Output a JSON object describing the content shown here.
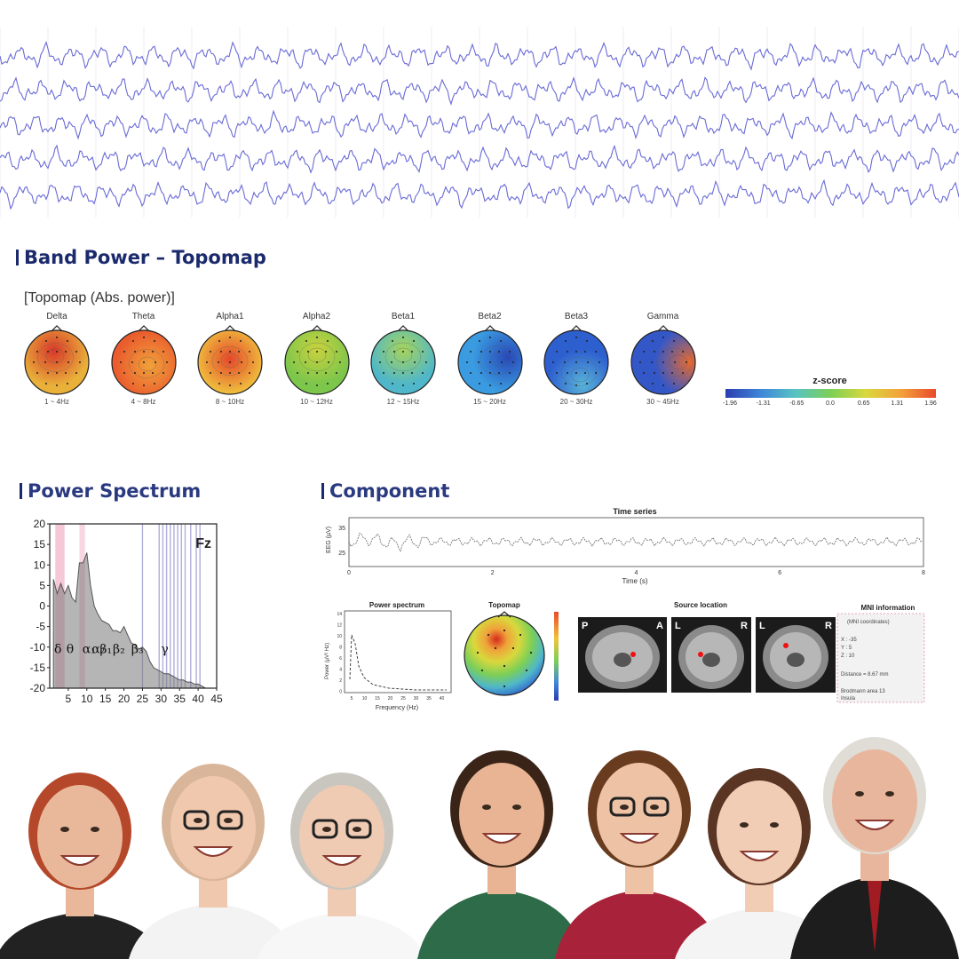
{
  "eeg": {
    "channel_count": 5,
    "trace_color": "#6a6bd6"
  },
  "band_power": {
    "heading": "Band Power – Topomap",
    "subtitle": "[Topomap (Abs. power)]",
    "bands": [
      {
        "name": "Delta",
        "range": "1 ~ 4Hz",
        "base": "#e9b03a",
        "hot": "#d8382a",
        "hot_pos": [
          0.45,
          0.32
        ]
      },
      {
        "name": "Theta",
        "range": "4 ~ 8Hz",
        "base": "#ea5b2e",
        "hot": "#f0a23a",
        "hot_pos": [
          0.6,
          0.55
        ]
      },
      {
        "name": "Alpha1",
        "range": "8 ~ 10Hz",
        "base": "#f0c23e",
        "hot": "#e4472b",
        "hot_pos": [
          0.5,
          0.45
        ]
      },
      {
        "name": "Alpha2",
        "range": "10 ~ 12Hz",
        "base": "#7cc64c",
        "hot": "#c9d23d",
        "hot_pos": [
          0.5,
          0.3
        ]
      },
      {
        "name": "Beta1",
        "range": "12 ~ 15Hz",
        "base": "#4fb7c9",
        "hot": "#a6d45a",
        "hot_pos": [
          0.5,
          0.3
        ]
      },
      {
        "name": "Beta2",
        "range": "15 ~ 20Hz",
        "base": "#3a9be0",
        "hot": "#2848b8",
        "hot_pos": [
          0.78,
          0.42
        ]
      },
      {
        "name": "Beta3",
        "range": "20 ~ 30Hz",
        "base": "#2e5fcf",
        "hot": "#58b3d8",
        "hot_pos": [
          0.6,
          0.85
        ]
      },
      {
        "name": "Gamma",
        "range": "30 ~ 45Hz",
        "base": "#3457c8",
        "hot": "#e86a2e",
        "hot_pos": [
          0.92,
          0.5
        ]
      }
    ],
    "colorbar": {
      "label": "z-score",
      "ticks": [
        "-1.96",
        "-1.31",
        "-0.65",
        "0.0",
        "0.65",
        "1.31",
        "1.96"
      ]
    }
  },
  "power_spectrum": {
    "heading": "Power Spectrum"
  },
  "component": {
    "heading": "Component",
    "time_series": {
      "title": "Time series",
      "ylabel": "EEG (µV)",
      "xlabel": "Time (s)",
      "x_ticks": [
        "0",
        "2",
        "4",
        "6",
        "8"
      ],
      "y_ticks": [
        "35",
        "25"
      ]
    },
    "power_spectrum": {
      "title": "Power spectrum",
      "ylabel": "Power (µV² Hz)",
      "xlabel": "Frequency (Hz)"
    },
    "topomap": {
      "title": "Topomap"
    },
    "source": {
      "title": "Source location",
      "panel1": [
        "P",
        "A"
      ],
      "panel2": [
        "L",
        "R"
      ],
      "panel3": [
        "L",
        "R"
      ]
    },
    "mni": {
      "title": "MNI information",
      "sub": "(MNI coordinates)",
      "x": "X : -35",
      "y": "Y : 5",
      "z": "Z : 10",
      "distance": "Distance = 8.67 mm",
      "brodmann": "Brodmann area 13",
      "region": "Insula"
    }
  },
  "chart_data": [
    {
      "type": "area",
      "title": "Fz",
      "xlabel": "",
      "ylabel": "",
      "xlim": [
        0,
        45
      ],
      "ylim": [
        -20,
        20
      ],
      "x_ticks": [
        "5",
        "10",
        "15",
        "20",
        "25",
        "30",
        "35",
        "40",
        "45"
      ],
      "y_ticks": [
        "20",
        "15",
        "10",
        "5",
        "0",
        "-5",
        "-10",
        "-15",
        "-20"
      ],
      "band_labels": [
        "δ",
        "θ",
        "α₁",
        "α₂",
        "β₁",
        "β₂",
        "β₃",
        "γ"
      ],
      "x": [
        1,
        2,
        3,
        4,
        5,
        6,
        7,
        8,
        9,
        10,
        11,
        12,
        13,
        14,
        15,
        16,
        17,
        18,
        19,
        20,
        21,
        22,
        23,
        24,
        25,
        26,
        27,
        28,
        29,
        30,
        31,
        32,
        33,
        34,
        35,
        36,
        37,
        38,
        39,
        40,
        41,
        42
      ],
      "y": [
        6.5,
        3,
        5.5,
        3,
        5,
        2,
        1,
        10.5,
        10.5,
        13,
        5,
        0,
        -2,
        -3.5,
        -4,
        -4.5,
        -6,
        -6,
        -6.5,
        -5,
        -7,
        -9,
        -9.5,
        -10.5,
        -10,
        -11,
        -13.5,
        -15,
        -15.5,
        -16,
        -16.5,
        -16.5,
        -17,
        -17.5,
        -18,
        -18,
        -18.5,
        -18.5,
        -19,
        -19,
        -19.5,
        -20
      ]
    },
    {
      "type": "line",
      "title": "Time series",
      "xlabel": "Time (s)",
      "ylabel": "EEG (µV)",
      "xlim": [
        0,
        8
      ],
      "ylim": [
        20,
        38
      ]
    },
    {
      "type": "line",
      "title": "Power spectrum",
      "xlabel": "Frequency (Hz)",
      "ylabel": "Power (µV² Hz)",
      "x_ticks": [
        "5",
        "10",
        "15",
        "20",
        "25",
        "30",
        "35",
        "40"
      ],
      "y_ticks": [
        "14",
        "12",
        "10",
        "8",
        "6",
        "4",
        "2",
        "0"
      ]
    }
  ],
  "people": [
    {
      "name": "woman-red-hair",
      "skin": "#e9b89a",
      "hair": "#b5482a",
      "shirt": "#222222"
    },
    {
      "name": "bald-man-glasses",
      "skin": "#f0c8ae",
      "hair": "#d9b59a",
      "shirt": "#f3f3f3"
    },
    {
      "name": "older-woman-glasses",
      "skin": "#efcbb3",
      "hair": "#c9c6c0",
      "shirt": "#f7f7f7"
    },
    {
      "name": "smiling-woman-curly",
      "skin": "#e9b494",
      "hair": "#3a2418",
      "shirt": "#2e6b48"
    },
    {
      "name": "young-man-glasses",
      "skin": "#eec3a5",
      "hair": "#6a3c1f",
      "shirt": "#a8233a"
    },
    {
      "name": "teen-girl",
      "skin": "#f2cdb5",
      "hair": "#5a3524",
      "shirt": "#f4f4f4"
    },
    {
      "name": "elderly-man-suit",
      "skin": "#e8b69c",
      "hair": "#e0dcd6",
      "shirt": "#1d1d1d"
    }
  ]
}
